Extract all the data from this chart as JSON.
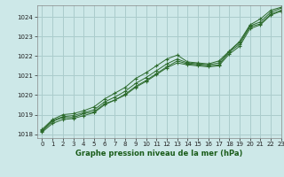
{
  "title": "Graphe pression niveau de la mer (hPa)",
  "background_color": "#cde8e8",
  "grid_color": "#aacccc",
  "line_color": "#2d6b2d",
  "xlim": [
    -0.5,
    23
  ],
  "ylim": [
    1017.8,
    1024.6
  ],
  "yticks": [
    1018,
    1019,
    1020,
    1021,
    1022,
    1023,
    1024
  ],
  "xticks": [
    0,
    1,
    2,
    3,
    4,
    5,
    6,
    7,
    8,
    9,
    10,
    11,
    12,
    13,
    14,
    15,
    16,
    17,
    18,
    19,
    20,
    21,
    22,
    23
  ],
  "series": [
    [
      1018.15,
      1018.65,
      1018.85,
      1018.85,
      1019.05,
      1019.15,
      1019.55,
      1019.75,
      1020.05,
      1020.45,
      1020.75,
      1021.1,
      1021.45,
      1021.75,
      1021.6,
      1021.55,
      1021.5,
      1021.55,
      1022.2,
      1022.6,
      1023.5,
      1023.65,
      1024.15,
      1024.35
    ],
    [
      1018.1,
      1018.55,
      1018.75,
      1018.8,
      1018.95,
      1019.1,
      1019.5,
      1019.75,
      1020.0,
      1020.4,
      1020.7,
      1021.05,
      1021.4,
      1021.65,
      1021.55,
      1021.5,
      1021.45,
      1021.5,
      1022.1,
      1022.5,
      1023.4,
      1023.6,
      1024.1,
      1024.3
    ],
    [
      1018.2,
      1018.7,
      1018.9,
      1018.95,
      1019.1,
      1019.25,
      1019.65,
      1019.9,
      1020.2,
      1020.6,
      1020.9,
      1021.25,
      1021.6,
      1021.85,
      1021.65,
      1021.6,
      1021.55,
      1021.65,
      1022.25,
      1022.7,
      1023.55,
      1023.75,
      1024.25,
      1024.45
    ],
    [
      1018.25,
      1018.75,
      1019.0,
      1019.05,
      1019.2,
      1019.4,
      1019.8,
      1020.1,
      1020.4,
      1020.85,
      1021.15,
      1021.5,
      1021.85,
      1022.05,
      1021.7,
      1021.65,
      1021.6,
      1021.75,
      1022.25,
      1022.75,
      1023.6,
      1023.9,
      1024.35,
      1024.5
    ]
  ]
}
